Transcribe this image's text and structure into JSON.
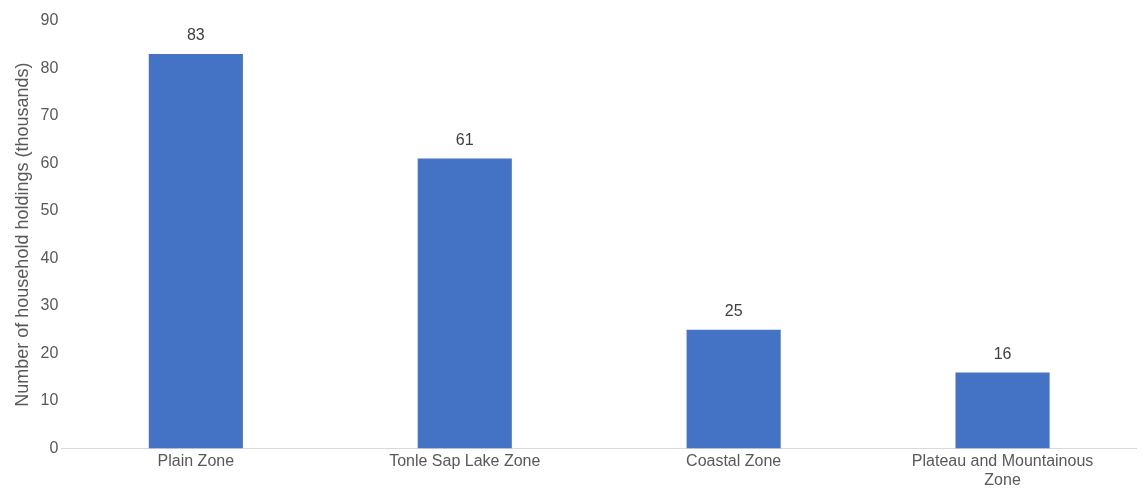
{
  "chart_data": {
    "type": "bar",
    "ylabel": "Number of household holdings (thousands)",
    "categories": [
      "Plain Zone",
      "Tonle Sap Lake Zone",
      "Coastal Zone",
      "Plateau and Mountainous Zone"
    ],
    "values": [
      83,
      61,
      25,
      16
    ],
    "color": "#4472c4",
    "ylim": [
      0,
      90
    ],
    "yticks": [
      0,
      10,
      20,
      30,
      40,
      50,
      60,
      70,
      80,
      90
    ],
    "grid": false,
    "legend": false,
    "data_labels": true
  }
}
